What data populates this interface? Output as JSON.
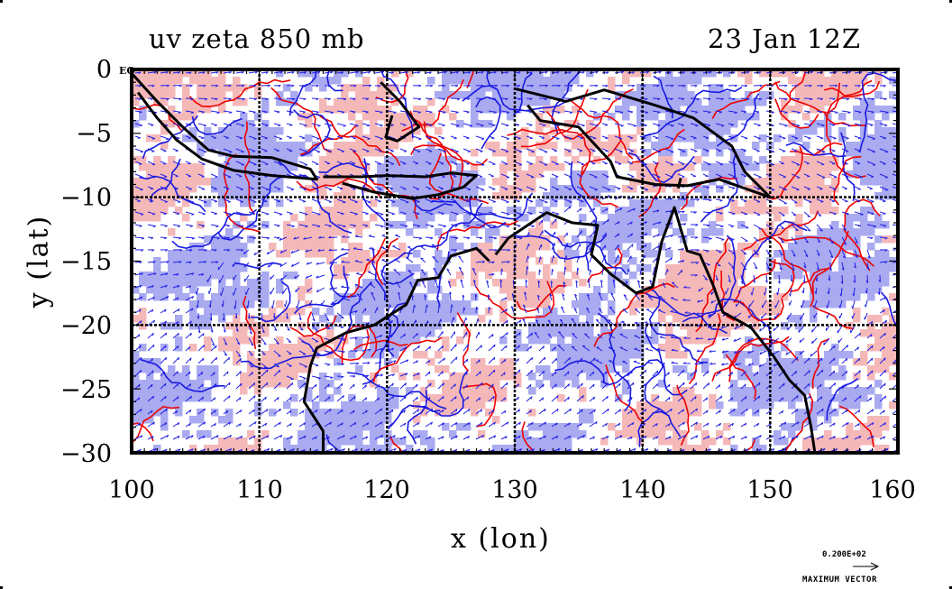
{
  "title_left": "uv zeta 850 mb",
  "title_right": "23 Jan 12Z",
  "x_axis_label": "x (lon)",
  "y_axis_label": "y (lat)",
  "x_ticks": [
    "100",
    "110",
    "120",
    "130",
    "140",
    "150",
    "160"
  ],
  "y_ticks": [
    "0",
    "−5",
    "−10",
    "−15",
    "−20",
    "−25",
    "−30"
  ],
  "equator_label": "EQ",
  "reference_vector": {
    "value": "0.200E+02",
    "caption": "MAXIMUM VECTOR"
  },
  "colors": {
    "positive_fill": "#f5b8b8",
    "negative_fill": "#a9aaf0",
    "positive_contour": "#ee0000",
    "negative_contour": "#1818e0",
    "vectors": "#2020e8",
    "coastline": "#000000",
    "grid": "#000000"
  },
  "map": {
    "lon_range": [
      100,
      160
    ],
    "lat_range": [
      -30,
      0
    ],
    "grid_lon": [
      110,
      120,
      130,
      140,
      150
    ],
    "grid_lat": [
      -10,
      -20
    ]
  }
}
